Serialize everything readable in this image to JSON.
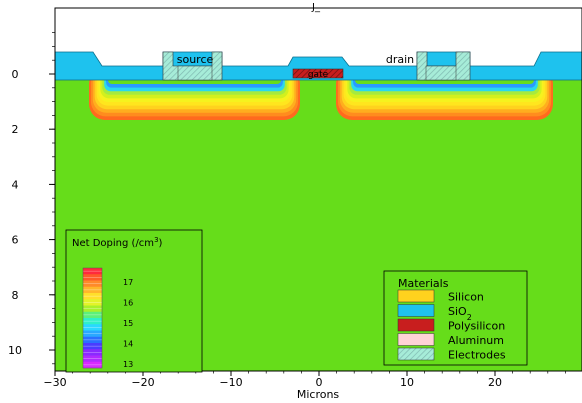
{
  "top_label": "J_",
  "x_axis": {
    "label": "Microns",
    "ticks": [
      -30,
      -20,
      -10,
      0,
      10,
      20
    ],
    "tick_labels": [
      "−30",
      "−20",
      "−10",
      "0",
      "10",
      "20"
    ],
    "range": [
      -30,
      30
    ]
  },
  "y_axis": {
    "ticks": [
      0,
      2,
      4,
      6,
      8,
      10
    ],
    "tick_labels": [
      "0",
      "2",
      "4",
      "6",
      "8",
      "10"
    ],
    "range": [
      -1.8,
      10.8
    ],
    "inverted": true
  },
  "labels": {
    "source": "source",
    "drain": "drain",
    "gate": "gate"
  },
  "doping_legend": {
    "title": "Net Doping (/cm",
    "title_sup": "3",
    "title_end": ")",
    "levels": [
      "17",
      "16",
      "15",
      "14",
      "13"
    ],
    "colors": [
      "#ff2a3c",
      "#ff5a2a",
      "#ff8a2a",
      "#ffb62a",
      "#ffdf2a",
      "#e4f32a",
      "#aaf02a",
      "#5cf07a",
      "#2ff0c8",
      "#2ad8ff",
      "#2aa8ff",
      "#2a70ff",
      "#4a3cff",
      "#8a2aff",
      "#b02aff",
      "#d82aff"
    ]
  },
  "materials_legend": {
    "title": "Materials",
    "items": [
      {
        "name": "Silicon",
        "sub": "",
        "color": "#ffd21e"
      },
      {
        "name": "SiO",
        "sub": "2",
        "color": "#1ec2ee"
      },
      {
        "name": "Polysilicon",
        "sub": "",
        "color": "#c81e1e"
      },
      {
        "name": "Aluminum",
        "sub": "",
        "color": "#ffd2d6"
      },
      {
        "name": "Electrodes",
        "sub": "",
        "color": "#a6ecd8"
      }
    ]
  },
  "colors": {
    "substrate": "#66dd1a",
    "oxide": "#1ec2ee",
    "well_rings": [
      "#ff6a1e",
      "#ff8c1e",
      "#ffae1e",
      "#ffd21e",
      "#ffe61e",
      "#f6f21e",
      "#d2f01e",
      "#a6ea3e",
      "#2ad8ee",
      "#2a9aff",
      "#66dd1a"
    ]
  }
}
